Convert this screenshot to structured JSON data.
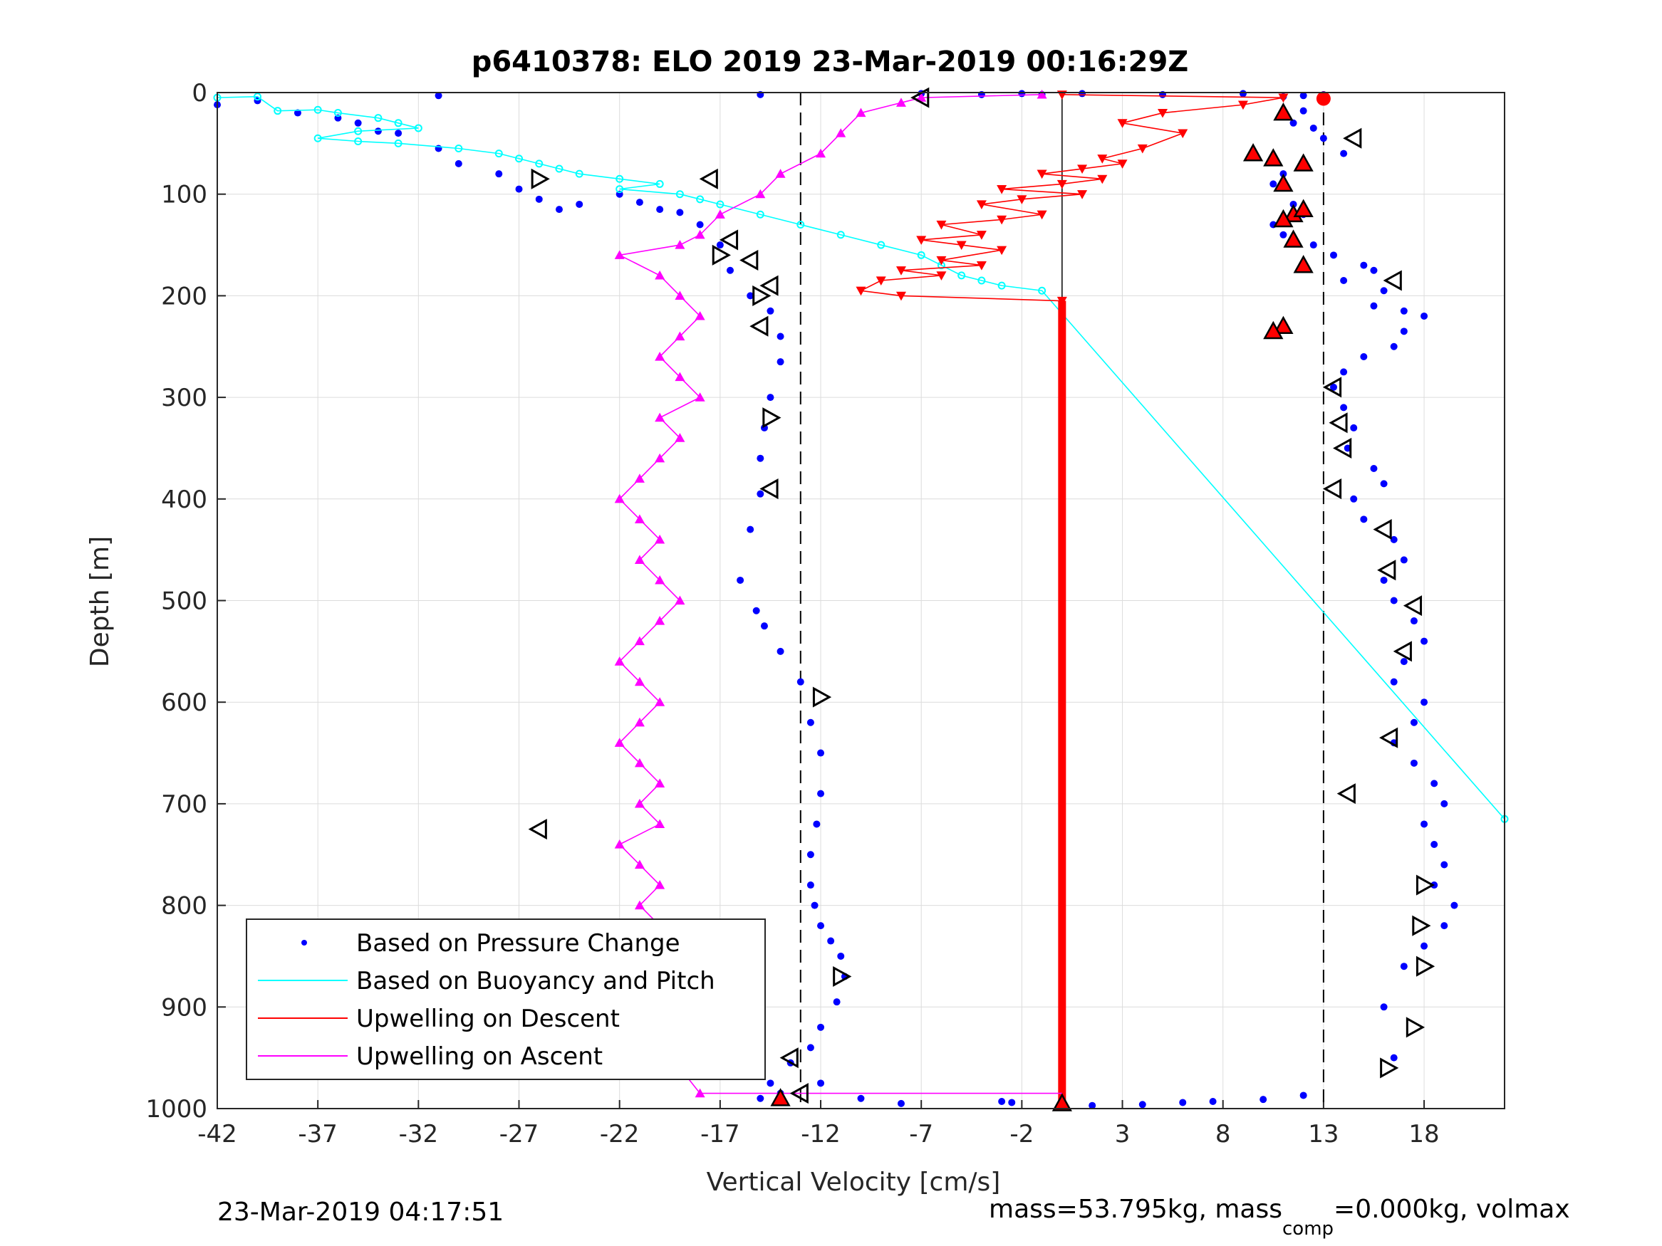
{
  "chart_data": {
    "type": "scatter",
    "title": "p6410378: ELO 2019 23-Mar-2019 00:16:29Z",
    "xlabel": "Vertical Velocity [cm/s]",
    "ylabel": "Depth [m]",
    "xlim": [
      -42,
      22
    ],
    "ylim": [
      0,
      1000
    ],
    "y_reversed": true,
    "grid": true,
    "xticks": [
      -42,
      -37,
      -32,
      -27,
      -22,
      -17,
      -12,
      -7,
      -2,
      3,
      8,
      13,
      18
    ],
    "yticks": [
      0,
      100,
      200,
      300,
      400,
      500,
      600,
      700,
      800,
      900,
      1000
    ],
    "reference_lines": {
      "dashed_x": [
        -13,
        13
      ],
      "solid_x": [
        0
      ]
    },
    "legend": {
      "placement": "bottom-left",
      "entries": [
        {
          "label": "Based on Pressure Change",
          "color": "#0000ff",
          "marker": "dot"
        },
        {
          "label": "Based on Buoyancy and Pitch",
          "color": "#00ffff",
          "marker": "line"
        },
        {
          "label": "Upwelling on Descent",
          "color": "#ff0000",
          "marker": "line"
        },
        {
          "label": "Upwelling on Ascent",
          "color": "#ff00ff",
          "marker": "line"
        }
      ]
    },
    "series": [
      {
        "name": "Based on Pressure Change",
        "color": "#0000ff",
        "style": "dots",
        "x": [
          -42,
          -40,
          -38,
          -36,
          -35,
          -34,
          -33,
          -31,
          -30,
          -28,
          -27,
          -26,
          -25,
          -24,
          -22,
          -21,
          -20,
          -19,
          -18,
          -17,
          -16.5,
          -15.5,
          -14.5,
          -14,
          -14,
          -14.5,
          -14.8,
          -15,
          -15,
          -15.5,
          -16,
          -15.2,
          -14.8,
          -14,
          -13,
          -12.5,
          -12,
          -12,
          -12.2,
          -12.5,
          -12.5,
          -12.3,
          -12,
          -11.5,
          -11,
          -10.8,
          -11.2,
          -12,
          -12.5,
          -13.5,
          -14.5,
          -15
        ],
        "y": [
          12,
          8,
          20,
          25,
          30,
          38,
          40,
          55,
          70,
          80,
          95,
          105,
          115,
          110,
          100,
          108,
          115,
          118,
          130,
          150,
          175,
          200,
          215,
          240,
          265,
          300,
          330,
          360,
          395,
          430,
          480,
          510,
          525,
          550,
          580,
          620,
          650,
          690,
          720,
          750,
          780,
          800,
          820,
          835,
          850,
          870,
          895,
          920,
          940,
          955,
          975,
          990
        ]
      },
      {
        "name": "Based on Pressure Change",
        "color": "#0000ff",
        "style": "dots",
        "x": [
          13,
          12,
          11.5,
          12.5,
          13,
          14,
          12,
          11,
          10.5,
          11.5,
          12,
          10.5,
          11,
          12.5,
          13.5,
          15,
          15.5,
          14,
          16,
          15.5,
          17,
          18,
          17,
          16.5,
          15,
          14,
          13.5,
          14,
          14.5,
          14.2,
          15.5,
          16,
          14.5,
          15,
          16.5,
          17,
          16,
          16.5,
          17.5,
          18,
          17,
          16.5,
          18,
          17.5,
          16.5,
          17.5,
          18.5,
          19,
          18,
          18.5,
          19,
          18.5,
          19.5,
          19,
          18,
          17,
          16,
          16.5
        ],
        "y": [
          5,
          18,
          30,
          35,
          45,
          60,
          70,
          80,
          90,
          110,
          120,
          130,
          140,
          150,
          160,
          170,
          175,
          185,
          195,
          210,
          215,
          220,
          235,
          250,
          260,
          275,
          290,
          310,
          330,
          350,
          370,
          385,
          400,
          420,
          440,
          460,
          480,
          500,
          520,
          540,
          560,
          580,
          600,
          620,
          640,
          660,
          680,
          700,
          720,
          740,
          760,
          780,
          800,
          820,
          840,
          860,
          900,
          950
        ]
      },
      {
        "name": "Based on Pressure Change",
        "color": "#0000ff",
        "style": "dots",
        "x": [
          -31,
          -15,
          -7,
          -4,
          -2,
          -1,
          1,
          5,
          9,
          11,
          12,
          13,
          -14,
          -12,
          -10,
          -8,
          -3,
          -2.5,
          1.5,
          4,
          6,
          7.5,
          10,
          12
        ],
        "y": [
          3,
          2,
          1,
          2,
          1,
          2,
          1,
          2,
          1,
          4,
          3,
          2,
          985,
          975,
          990,
          995,
          993,
          994,
          997,
          996,
          994,
          993,
          991,
          987
        ]
      },
      {
        "name": "Based on Buoyancy and Pitch",
        "color": "#00ffff",
        "style": "line-circles",
        "x": [
          -42,
          -40,
          -39,
          -37,
          -36,
          -34,
          -33,
          -32,
          -35,
          -37,
          -35,
          -33,
          -30,
          -28,
          -27,
          -26,
          -25,
          -24,
          -22,
          -20,
          -22,
          -19,
          -18,
          -17,
          -15,
          -13,
          -11,
          -9,
          -7,
          -6,
          -5,
          -4,
          -3,
          -1,
          22
        ],
        "y": [
          5,
          4,
          18,
          17,
          20,
          25,
          30,
          35,
          38,
          45,
          48,
          50,
          55,
          60,
          65,
          70,
          75,
          80,
          85,
          90,
          95,
          100,
          105,
          110,
          120,
          130,
          140,
          150,
          160,
          170,
          180,
          185,
          190,
          195,
          715
        ]
      },
      {
        "name": "Upwelling on Descent",
        "color": "#ff0000",
        "style": "line-triangles-down",
        "x": [
          0,
          11,
          9,
          5,
          3,
          6,
          4,
          2,
          3,
          1,
          -1,
          2,
          0,
          -3,
          1,
          -2,
          -4,
          -1,
          -3,
          -6,
          -4,
          -7,
          -5,
          -3,
          -6,
          -4,
          -8,
          -6,
          -9,
          -10,
          -8,
          0
        ],
        "y": [
          2,
          5,
          12,
          20,
          30,
          40,
          55,
          65,
          70,
          75,
          80,
          85,
          90,
          95,
          100,
          105,
          110,
          120,
          125,
          130,
          140,
          145,
          150,
          155,
          165,
          170,
          175,
          180,
          185,
          195,
          200,
          205
        ]
      },
      {
        "name": "Upwelling on Descent",
        "color": "#ff0000",
        "style": "thick-bar",
        "x": [
          0,
          0
        ],
        "y": [
          205,
          1000
        ]
      },
      {
        "name": "Upwelling on Ascent",
        "color": "#ff00ff",
        "style": "line-triangles-up",
        "x": [
          -18,
          -19,
          -20,
          -21,
          -20,
          -19,
          -20,
          -21,
          -20,
          -21,
          -20,
          -21,
          -22,
          -20,
          -21,
          -20,
          -21,
          -22,
          -21,
          -20,
          -21,
          -22,
          -21,
          -20,
          -19,
          -20,
          -21,
          -20,
          -21,
          -22,
          -21,
          -20,
          -19,
          -20,
          -18,
          -19,
          -20,
          -19,
          -18,
          -19,
          -20,
          -22,
          -19,
          -18,
          -17,
          -15,
          -14,
          -12,
          -11,
          -10,
          -8,
          -7,
          -1
        ],
        "y": [
          985,
          960,
          940,
          920,
          900,
          880,
          860,
          840,
          820,
          800,
          780,
          760,
          740,
          720,
          700,
          680,
          660,
          640,
          620,
          600,
          580,
          560,
          540,
          520,
          500,
          480,
          460,
          440,
          420,
          400,
          380,
          360,
          340,
          320,
          300,
          280,
          260,
          240,
          220,
          200,
          180,
          160,
          150,
          140,
          120,
          100,
          80,
          60,
          40,
          20,
          10,
          5,
          2
        ]
      },
      {
        "name": "Upwelling on Ascent",
        "color": "#ff00ff",
        "style": "line",
        "x": [
          -18,
          0
        ],
        "y": [
          985,
          985
        ]
      }
    ],
    "markers": {
      "open_triangles_left": {
        "x": [
          -7,
          14.5,
          16.5,
          13.5,
          13.8,
          14,
          13.5,
          16,
          16.2,
          17.5,
          17,
          16.3,
          14.2,
          -26,
          -17.5,
          -16.5,
          -15.5,
          -14.5,
          -15,
          -14.5,
          -13.5,
          -13
        ],
        "y": [
          5,
          45,
          185,
          290,
          325,
          350,
          390,
          430,
          470,
          505,
          550,
          635,
          690,
          725,
          85,
          145,
          165,
          190,
          230,
          390,
          950,
          985
        ]
      },
      "open_triangles_right": {
        "x": [
          -26,
          -17,
          -15,
          -14.5,
          -12,
          -11,
          18,
          17.8,
          18,
          17.5,
          16.2
        ],
        "y": [
          85,
          160,
          200,
          320,
          595,
          870,
          780,
          820,
          860,
          920,
          960
        ]
      },
      "filled_red_triangles": {
        "x": [
          9.5,
          11,
          12,
          10.5,
          11,
          11.5,
          12,
          11,
          11.5,
          12,
          11,
          10.5,
          -14,
          0
        ],
        "y": [
          60,
          20,
          70,
          65,
          90,
          120,
          115,
          125,
          145,
          170,
          230,
          235,
          990,
          995
        ]
      },
      "filled_red_circle": {
        "x": [
          13
        ],
        "y": [
          6
        ]
      }
    }
  },
  "footer": {
    "timestamp": "23-Mar-2019 04:17:51",
    "mass_text": "mass=53.795kg, mass",
    "mass_sub": "comp",
    "mass_rest": "=0.000kg, volmax"
  }
}
